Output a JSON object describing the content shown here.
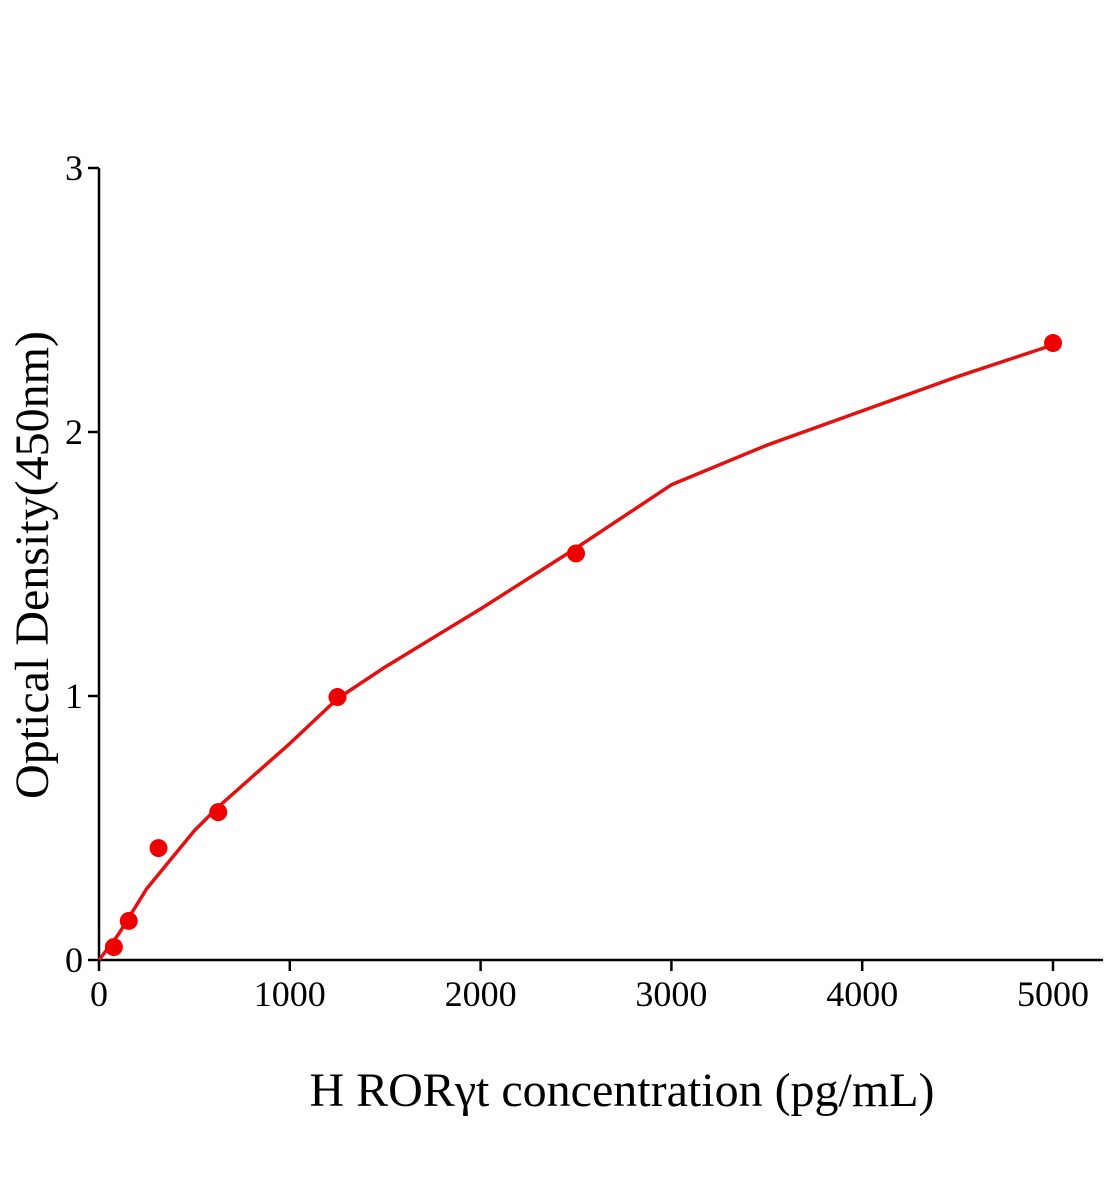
{
  "chart_data": {
    "type": "scatter",
    "x_label": "H RORγt concentration (pg/mL)",
    "y_label": "Optical Density(450nm)",
    "xlim": [
      0,
      5262
    ],
    "ylim": [
      0,
      3
    ],
    "xticks": [
      0,
      1000,
      2000,
      3000,
      4000,
      5000
    ],
    "yticks": [
      0,
      1,
      2,
      3
    ],
    "grid": false,
    "series": [
      {
        "style": "points",
        "color": "#ee0000",
        "x": [
          78,
          156,
          312,
          625,
          1250,
          2500,
          5000
        ],
        "values": [
          0.049,
          0.148,
          0.424,
          0.56,
          0.996,
          1.54,
          2.337
        ]
      },
      {
        "style": "line",
        "color": "#e31010",
        "x": [
          0,
          100,
          250,
          500,
          625,
          1000,
          1250,
          1500,
          2000,
          2500,
          3000,
          3500,
          4000,
          4500,
          5000
        ],
        "values": [
          0,
          0.095,
          0.27,
          0.49,
          0.58,
          0.82,
          0.99,
          1.11,
          1.33,
          1.56,
          1.8,
          1.95,
          2.08,
          2.21,
          2.33
        ]
      }
    ]
  }
}
